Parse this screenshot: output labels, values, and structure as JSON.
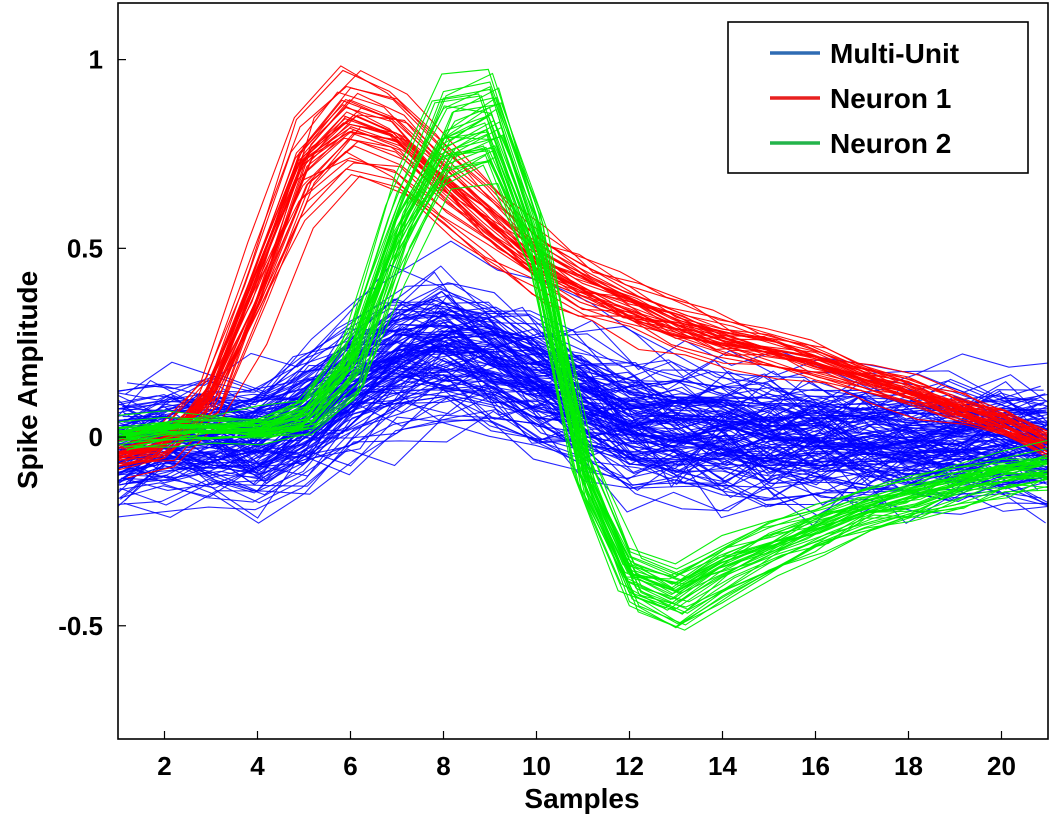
{
  "chart_data": {
    "type": "line",
    "title": "",
    "xlabel": "Samples",
    "ylabel": "Spike Amplitude",
    "xlim": [
      1,
      21
    ],
    "ylim": [
      -0.8,
      1.15
    ],
    "x": [
      1,
      2,
      3,
      4,
      5,
      6,
      7,
      8,
      9,
      10,
      11,
      12,
      13,
      14,
      15,
      16,
      17,
      18,
      19,
      20,
      21
    ],
    "xticks": [
      2,
      4,
      6,
      8,
      10,
      12,
      14,
      16,
      18,
      20
    ],
    "xtick_labels": [
      "2",
      "4",
      "6",
      "8",
      "10",
      "12",
      "14",
      "16",
      "18",
      "20"
    ],
    "yticks": [
      1,
      0.5,
      0,
      -0.5
    ],
    "ytick_labels": [
      "1",
      "0.5",
      "0",
      "-0.5"
    ],
    "grid": false,
    "legend_position": "top-right",
    "series": [
      {
        "name": "Multi-Unit",
        "color": "#0000ff",
        "legend_color": "#2e6bb3",
        "mean": [
          -0.02,
          0.0,
          0.01,
          0.0,
          0.06,
          0.15,
          0.22,
          0.25,
          0.22,
          0.16,
          0.1,
          0.05,
          0.03,
          0.02,
          0.01,
          0.01,
          0.0,
          0.0,
          0.0,
          0.0,
          -0.01
        ],
        "spread": [
          0.13,
          0.13,
          0.13,
          0.13,
          0.14,
          0.15,
          0.15,
          0.15,
          0.15,
          0.15,
          0.15,
          0.15,
          0.15,
          0.15,
          0.14,
          0.14,
          0.14,
          0.13,
          0.13,
          0.13,
          0.13
        ],
        "trace_count": 140
      },
      {
        "name": "Neuron 1",
        "color": "#ff0000",
        "legend_color": "#e8201f",
        "mean": [
          -0.05,
          -0.02,
          0.1,
          0.4,
          0.72,
          0.84,
          0.8,
          0.68,
          0.57,
          0.47,
          0.4,
          0.35,
          0.3,
          0.26,
          0.23,
          0.2,
          0.16,
          0.12,
          0.08,
          0.04,
          -0.02
        ],
        "spread": [
          0.05,
          0.05,
          0.06,
          0.07,
          0.06,
          0.04,
          0.04,
          0.05,
          0.05,
          0.05,
          0.05,
          0.05,
          0.05,
          0.04,
          0.04,
          0.04,
          0.04,
          0.04,
          0.04,
          0.04,
          0.04
        ],
        "trace_count": 40
      },
      {
        "name": "Neuron 2",
        "color": "#00ee00",
        "legend_color": "#23b44a",
        "mean": [
          0.0,
          0.02,
          0.02,
          0.02,
          0.05,
          0.2,
          0.55,
          0.8,
          0.84,
          0.5,
          -0.1,
          -0.38,
          -0.43,
          -0.36,
          -0.3,
          -0.25,
          -0.2,
          -0.17,
          -0.13,
          -0.1,
          -0.08
        ],
        "spread": [
          0.03,
          0.03,
          0.03,
          0.03,
          0.04,
          0.07,
          0.08,
          0.06,
          0.05,
          0.08,
          0.07,
          0.04,
          0.04,
          0.04,
          0.04,
          0.04,
          0.04,
          0.04,
          0.04,
          0.04,
          0.04
        ],
        "trace_count": 40
      }
    ]
  }
}
